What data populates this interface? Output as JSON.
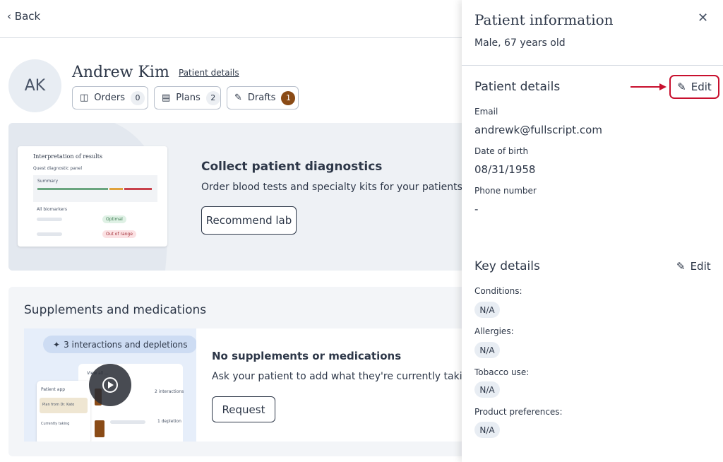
{
  "back": "Back",
  "patient": {
    "initials": "AK",
    "name": "Andrew Kim",
    "details_link": "Patient details"
  },
  "tabs": [
    {
      "label": "Orders",
      "count": 0
    },
    {
      "label": "Plans",
      "count": 2
    },
    {
      "label": "Drafts",
      "count": 1
    }
  ],
  "lab_card": {
    "preview": {
      "title": "Interpretation of results",
      "subtitle": "Quest diagnostic panel",
      "summary": "Summary",
      "biomarkers": "All biomarkers",
      "optimal": "Optimal",
      "out_of_range": "Out of range"
    },
    "title": "Collect patient diagnostics",
    "text": "Order blood tests and specialty kits for your patients t",
    "button": "Recommend lab"
  },
  "supplements": {
    "title": "Supplements and medications",
    "badge": "3 interactions and depletions",
    "preview": {
      "app": "Patient app",
      "plan": "Plan from Dr. Kato",
      "taking": "Currently taking",
      "view": "View all ...",
      "interactions": "2 interactions",
      "depletion": "1 depletion"
    },
    "heading": "No supplements or medications",
    "text": "Ask your patient to add what they're currently takin",
    "button": "Request"
  },
  "panel": {
    "title": "Patient information",
    "subtitle": "Male, 67 years old",
    "details": {
      "heading": "Patient details",
      "edit": "Edit",
      "fields": [
        {
          "label": "Email",
          "value": "andrewk@fullscript.com"
        },
        {
          "label": "Date of birth",
          "value": "08/31/1958"
        },
        {
          "label": "Phone number",
          "value": "-"
        }
      ]
    },
    "key_details": {
      "heading": "Key details",
      "edit": "Edit",
      "fields": [
        {
          "label": "Conditions:",
          "value": "N/A"
        },
        {
          "label": "Allergies:",
          "value": "N/A"
        },
        {
          "label": "Tobacco use:",
          "value": "N/A"
        },
        {
          "label": "Product preferences:",
          "value": "N/A"
        }
      ]
    }
  }
}
